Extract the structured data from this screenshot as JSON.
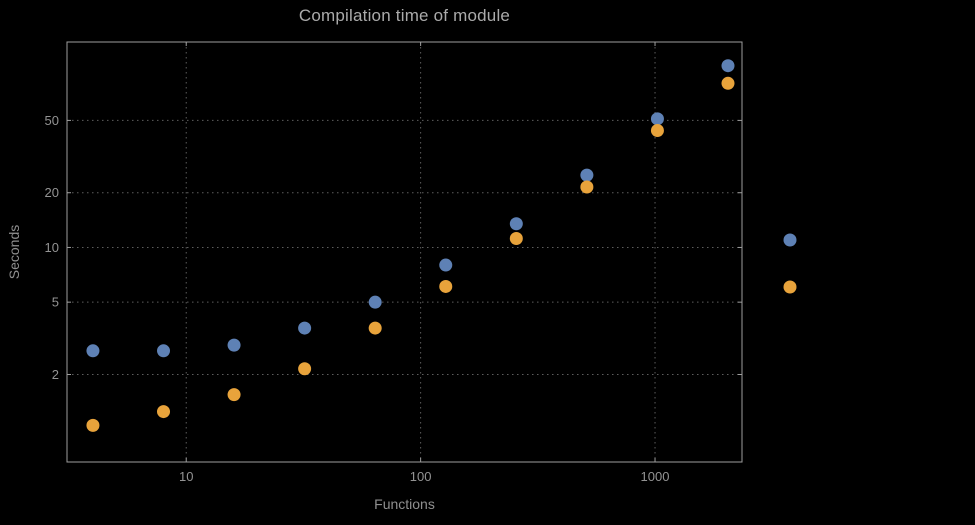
{
  "title": "Compilation time of module",
  "colors": {
    "background": "#000000",
    "frame": "#9e9e9e",
    "grid": "#5e5e5e",
    "title_text": "#aaaaaa",
    "axis_label_text": "#8f8f8f",
    "tick_text": "#939393",
    "series_blue": "#5e81b5",
    "series_orange": "#e8a33b"
  },
  "chart_data": {
    "type": "scatter",
    "title": "Compilation time of module",
    "xlabel": "Functions",
    "ylabel": "Seconds",
    "xscale": "log",
    "yscale": "log",
    "xlim": [
      3.1,
      2350
    ],
    "ylim": [
      0.66,
      135
    ],
    "grid": "dotted",
    "legend_position": "right",
    "x_ticks": [
      {
        "value": 10,
        "label": "10"
      },
      {
        "value": 100,
        "label": "100"
      },
      {
        "value": 1000,
        "label": "1000"
      }
    ],
    "y_ticks": [
      {
        "value": 2,
        "label": "2"
      },
      {
        "value": 5,
        "label": "5"
      },
      {
        "value": 10,
        "label": "10"
      },
      {
        "value": 20,
        "label": "20"
      },
      {
        "value": 50,
        "label": "50"
      }
    ],
    "x": [
      4,
      8,
      16,
      32,
      64,
      128,
      256,
      512,
      1024,
      2048
    ],
    "series": [
      {
        "name": "blue",
        "color": "#5e81b5",
        "values": [
          2.7,
          2.7,
          2.9,
          3.6,
          5.0,
          8.0,
          13.5,
          25,
          51,
          100
        ]
      },
      {
        "name": "orange",
        "color": "#e8a33b",
        "values": [
          1.05,
          1.25,
          1.55,
          2.15,
          3.6,
          6.1,
          11.2,
          21.5,
          44,
          80
        ]
      }
    ]
  }
}
